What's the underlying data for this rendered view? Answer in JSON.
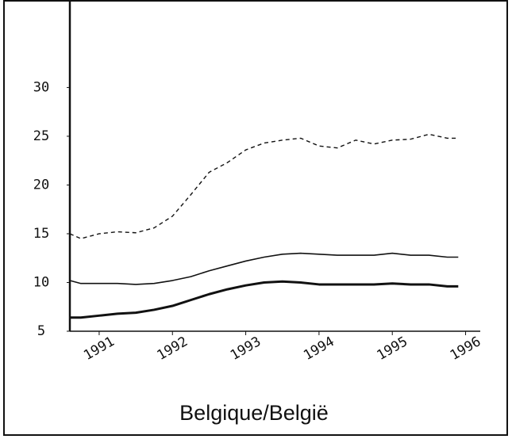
{
  "chart_data": {
    "type": "line",
    "title": "Belgique/België",
    "x": [
      1990.6,
      1990.75,
      1991.0,
      1991.25,
      1991.5,
      1991.75,
      1992.0,
      1992.25,
      1992.5,
      1992.75,
      1993.0,
      1993.25,
      1993.5,
      1993.75,
      1994.0,
      1994.25,
      1994.5,
      1994.75,
      1995.0,
      1995.25,
      1995.5,
      1995.75,
      1995.9
    ],
    "series": [
      {
        "color": "#111111",
        "style": "dashed",
        "width": 1.4,
        "values": [
          15.0,
          14.5,
          15.0,
          15.2,
          15.1,
          15.6,
          16.8,
          19.0,
          21.3,
          22.3,
          23.6,
          24.3,
          24.6,
          24.8,
          24.0,
          23.8,
          24.6,
          24.2,
          24.6,
          24.7,
          25.2,
          24.8,
          24.8
        ]
      },
      {
        "color": "#111111",
        "style": "solid",
        "width": 1.6,
        "values": [
          10.2,
          9.9,
          9.9,
          9.9,
          9.8,
          9.9,
          10.2,
          10.6,
          11.2,
          11.7,
          12.2,
          12.6,
          12.9,
          13.0,
          12.9,
          12.8,
          12.8,
          12.8,
          13.0,
          12.8,
          12.8,
          12.6,
          12.6
        ]
      },
      {
        "color": "#111111",
        "style": "solid",
        "width": 3,
        "values": [
          6.4,
          6.4,
          6.6,
          6.8,
          6.9,
          7.2,
          7.6,
          8.2,
          8.8,
          9.3,
          9.7,
          10.0,
          10.1,
          10.0,
          9.8,
          9.8,
          9.8,
          9.8,
          9.9,
          9.8,
          9.8,
          9.6,
          9.6
        ]
      }
    ],
    "xlim": [
      1990.6,
      1996.2
    ],
    "xticks": [
      1991,
      1992,
      1993,
      1994,
      1995,
      1996
    ],
    "ylim": [
      5,
      38
    ],
    "yticks": [
      5,
      10,
      15,
      20,
      25,
      30
    ]
  }
}
